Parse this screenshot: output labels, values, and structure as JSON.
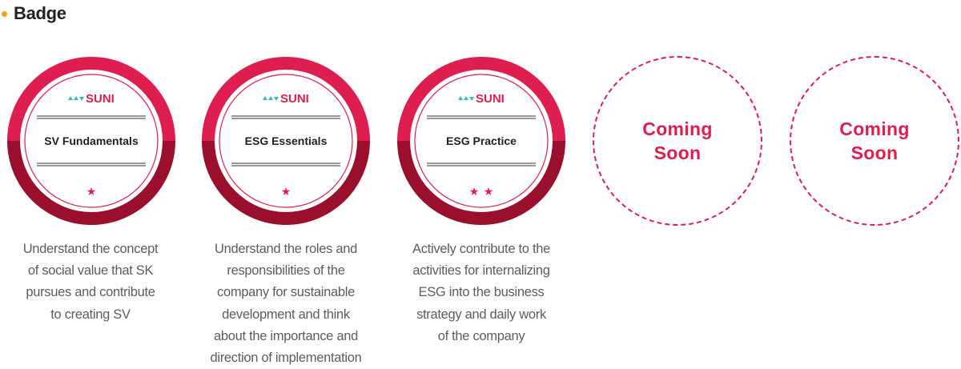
{
  "section": {
    "title": "Badge"
  },
  "badges": [
    {
      "logo": "SUNI",
      "name": "SV Fundamentals",
      "stars": 1,
      "description": [
        "Understand the concept",
        "of social value that SK",
        "pursues and contribute",
        "to creating SV"
      ]
    },
    {
      "logo": "SUNI",
      "name": "ESG Essentials",
      "stars": 1,
      "description": [
        "Understand the roles and",
        "responsibilities of the",
        "company for sustainable",
        "development and think",
        "about the importance and",
        "direction of implementation"
      ]
    },
    {
      "logo": "SUNI",
      "name": "ESG Practice",
      "stars": 2,
      "description": [
        "Actively contribute to the",
        "activities for internalizing",
        "ESG into the business",
        "strategy and daily work",
        "of the company"
      ]
    }
  ],
  "placeholders": [
    {
      "line1": "Coming",
      "line2": "Soon"
    },
    {
      "line1": "Coming",
      "line2": "Soon"
    }
  ],
  "colors": {
    "accent": "#de1e4f",
    "ring_dark": "#9a0f2c",
    "bullet": "#f2a11a",
    "text": "#5d5d5d"
  }
}
